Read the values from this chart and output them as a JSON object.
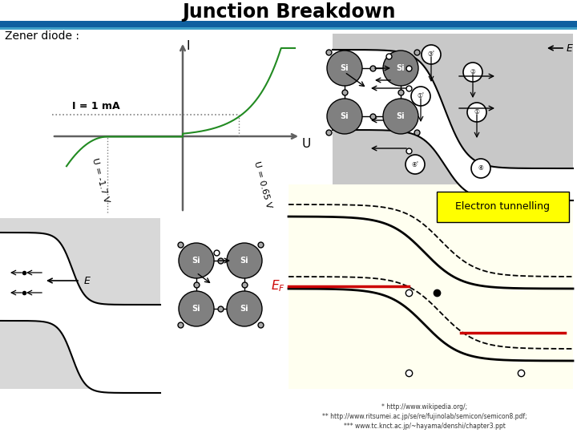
{
  "title": "Junction Breakdown",
  "subtitle": "Zener diode :",
  "bg_color": "#ffffff",
  "title_color": "#000000",
  "bar_dark": "#1060a0",
  "bar_light": "#40a0c8",
  "footer_text1": "* http://www.wikipedia.org/;",
  "footer_text2": "** http://www.ritsumei.ac.jp/se/re/fujinolab/semicon/semicon8.pdf;",
  "footer_text3": "*** www.tc.knct.ac.jp/~hayama/denshi/chapter3.ppt",
  "yellow_bg": "#fffff0",
  "gray_bg": "#c8c8c8",
  "ef_color": "#cc0000",
  "green_curve": "#228B22",
  "electron_tunnelling_bg": "#ffff00"
}
